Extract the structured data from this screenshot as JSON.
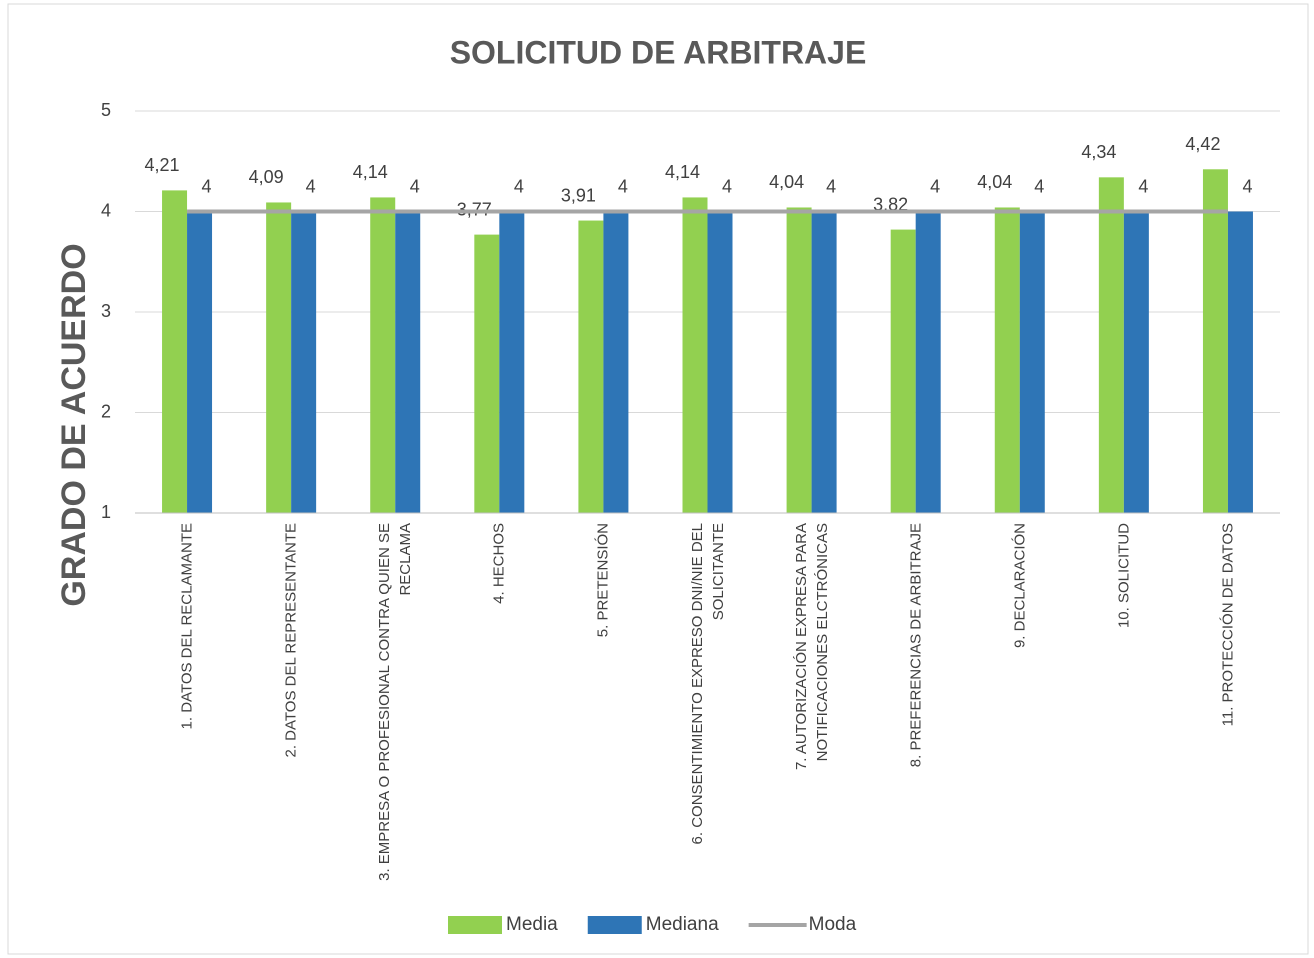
{
  "chart_data": {
    "type": "bar",
    "title": "SOLICITUD DE ARBITRAJE",
    "y_label": "GRADO DE ACUERDO",
    "categories": [
      "1. DATOS DEL RECLAMANTE",
      "2. DATOS DEL REPRESENTANTE",
      "3. EMPRESA O PROFESIONAL CONTRA QUIEN SE RECLAMA",
      "4. HECHOS",
      "5. PRETENSIÓN",
      "6. CONSENTIMIENTO EXPRESO DNI/NIE DEL SOLICITANTE",
      "7. AUTORIZACIÓN EXPRESA PARA NOTIFICACIONES ELCTRÓNICAS",
      "8. PREFERENCIAS DE ARBITRAJE",
      "9. DECLARACIÓN",
      "10. SOLICITUD",
      "11. PROTECCIÓN DE DATOS"
    ],
    "series": [
      {
        "name": "Media",
        "type": "bar",
        "color": "#92d050",
        "values": [
          4.21,
          4.09,
          4.14,
          3.77,
          3.91,
          4.14,
          4.04,
          3.82,
          4.04,
          4.34,
          4.42
        ],
        "value_labels": [
          "4,21",
          "4,09",
          "4,14",
          "3,77",
          "3,91",
          "4,14",
          "4,04",
          "3,82",
          "4,04",
          "4,34",
          "4,42"
        ]
      },
      {
        "name": "Mediana",
        "type": "bar",
        "color": "#2e75b6",
        "values": [
          4,
          4,
          4,
          4,
          4,
          4,
          4,
          4,
          4,
          4,
          4
        ]
      },
      {
        "name": "Moda",
        "type": "line",
        "color": "#a5a5a5",
        "values": [
          4,
          4,
          4,
          4,
          4,
          4,
          4,
          4,
          4,
          4,
          4
        ]
      }
    ],
    "ylim": [
      1,
      5
    ],
    "yticks": [
      1,
      2,
      3,
      4,
      5
    ],
    "grid": true,
    "legend": "bottom"
  }
}
